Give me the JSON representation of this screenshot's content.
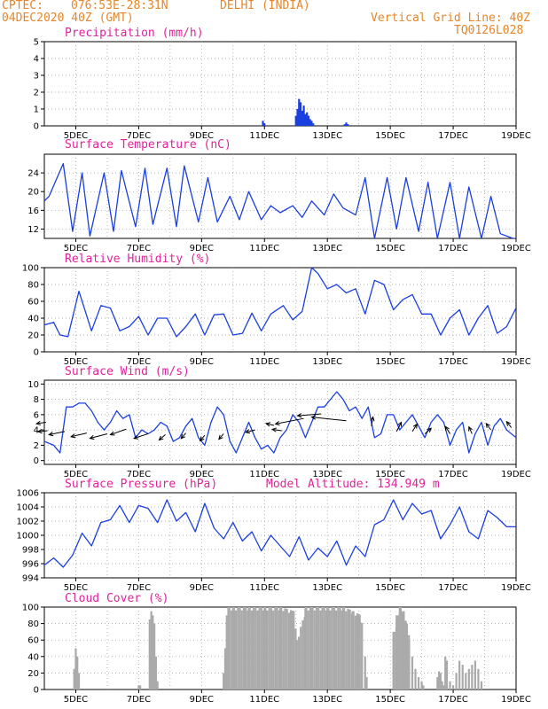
{
  "header": {
    "source": "CPTEC:",
    "coords": "076:53E-28:31N",
    "location": "DELHI (INDIA)",
    "date": "04DEC2020 40Z (GMT)",
    "grid_note": "Vertical Grid Line: 40Z",
    "run_code": "TQ0126L028"
  },
  "colors": {
    "line": "#1a3fe0",
    "bar_precip": "#1a3fe0",
    "bar_cloud": "#aaaaaa",
    "title": "#e0239a",
    "header": "#e5862a"
  },
  "x_axis": {
    "min": 4.0,
    "max": 19.0,
    "ticks": [
      5,
      7,
      9,
      11,
      13,
      15,
      17,
      19
    ],
    "tick_labels": [
      "5DEC",
      "7DEC",
      "9DEC",
      "11DEC",
      "13DEC",
      "15DEC",
      "17DEC",
      "19DEC"
    ]
  },
  "chart_data": [
    {
      "type": "bar",
      "title": "Precipitation (mm/h)",
      "ylim": [
        0,
        5
      ],
      "yticks": [
        0,
        1,
        2,
        3,
        4,
        5
      ],
      "x": [
        10.95,
        11.0,
        12.0,
        12.05,
        12.1,
        12.15,
        12.2,
        12.25,
        12.3,
        12.35,
        12.4,
        12.45,
        12.5,
        12.55,
        13.55,
        13.6,
        13.65
      ],
      "values": [
        0.3,
        0.15,
        0.6,
        1.0,
        1.6,
        1.4,
        0.9,
        1.2,
        0.7,
        0.8,
        0.6,
        0.4,
        0.3,
        0.15,
        0.1,
        0.2,
        0.1
      ]
    },
    {
      "type": "line",
      "title": "Surface Temperature (nC)",
      "ylim": [
        10,
        28
      ],
      "yticks": [
        12,
        16,
        20,
        24
      ],
      "x": [
        4.0,
        4.15,
        4.6,
        4.9,
        5.2,
        5.45,
        5.9,
        6.2,
        6.45,
        6.9,
        7.2,
        7.45,
        7.9,
        8.2,
        8.45,
        8.9,
        9.2,
        9.5,
        9.9,
        10.2,
        10.5,
        10.9,
        11.2,
        11.5,
        11.9,
        12.2,
        12.5,
        12.9,
        13.2,
        13.5,
        13.9,
        14.2,
        14.5,
        14.9,
        15.2,
        15.5,
        15.9,
        16.2,
        16.5,
        16.9,
        17.2,
        17.5,
        17.9,
        18.2,
        18.5,
        18.9,
        19.0
      ],
      "values": [
        18,
        19,
        26,
        11.5,
        24,
        10.5,
        24,
        11.5,
        24.5,
        12.5,
        25,
        13,
        25,
        12.5,
        25.5,
        13.5,
        23,
        13.5,
        19,
        14,
        20,
        14,
        17,
        15.5,
        17,
        14.5,
        18,
        15,
        19.5,
        16.5,
        15,
        23,
        10,
        23,
        12,
        23,
        11.5,
        22,
        10,
        22,
        10,
        21,
        10,
        19,
        11,
        10,
        10
      ]
    },
    {
      "type": "line",
      "title": "Relative Humidity (%)",
      "ylim": [
        0,
        100
      ],
      "yticks": [
        0,
        20,
        40,
        60,
        80,
        100
      ],
      "x": [
        4.0,
        4.3,
        4.5,
        4.75,
        5.1,
        5.5,
        5.8,
        6.1,
        6.4,
        6.7,
        7.0,
        7.3,
        7.6,
        7.9,
        8.2,
        8.5,
        8.8,
        9.1,
        9.4,
        9.7,
        10.0,
        10.3,
        10.6,
        10.9,
        11.2,
        11.6,
        11.9,
        12.2,
        12.5,
        12.7,
        13.0,
        13.3,
        13.6,
        13.9,
        14.2,
        14.5,
        14.8,
        15.1,
        15.4,
        15.7,
        16.0,
        16.3,
        16.6,
        16.9,
        17.2,
        17.5,
        17.8,
        18.1,
        18.4,
        18.7,
        19.0
      ],
      "values": [
        32,
        35,
        20,
        18,
        72,
        25,
        55,
        52,
        25,
        30,
        42,
        20,
        40,
        40,
        18,
        30,
        45,
        20,
        44,
        45,
        20,
        22,
        46,
        25,
        45,
        55,
        38,
        48,
        100,
        93,
        75,
        80,
        70,
        75,
        45,
        85,
        80,
        50,
        62,
        68,
        45,
        45,
        20,
        40,
        50,
        20,
        40,
        55,
        22,
        30,
        52
      ]
    },
    {
      "type": "line",
      "title": "Surface Wind (m/s)",
      "ylim": [
        -0.5,
        10.5
      ],
      "yticks": [
        0,
        2,
        4,
        6,
        8,
        10
      ],
      "x": [
        4.0,
        4.3,
        4.5,
        4.7,
        4.9,
        5.1,
        5.3,
        5.5,
        5.7,
        5.9,
        6.1,
        6.3,
        6.5,
        6.7,
        6.9,
        7.1,
        7.3,
        7.5,
        7.7,
        7.9,
        8.1,
        8.3,
        8.5,
        8.7,
        8.9,
        9.1,
        9.3,
        9.5,
        9.7,
        9.9,
        10.1,
        10.3,
        10.5,
        10.7,
        10.9,
        11.1,
        11.3,
        11.5,
        11.7,
        11.9,
        12.1,
        12.3,
        12.5,
        12.7,
        12.9,
        13.1,
        13.3,
        13.5,
        13.7,
        13.9,
        14.1,
        14.3,
        14.5,
        14.7,
        14.9,
        15.1,
        15.3,
        15.5,
        15.7,
        15.9,
        16.1,
        16.3,
        16.5,
        16.7,
        16.9,
        17.1,
        17.3,
        17.5,
        17.7,
        17.9,
        18.1,
        18.3,
        18.5,
        18.7,
        19.0
      ],
      "values": [
        2.5,
        2,
        1,
        7,
        7,
        7.5,
        7.5,
        6.5,
        5,
        4,
        5,
        6.5,
        5.5,
        6,
        3,
        4,
        3.5,
        4,
        5,
        4.5,
        2.5,
        3,
        4.5,
        5.5,
        3,
        2,
        5,
        7,
        6,
        2.5,
        1,
        3,
        5,
        3,
        1.5,
        2,
        1,
        3,
        4,
        6,
        5,
        3,
        5,
        7,
        7,
        8,
        9,
        8,
        6.5,
        7,
        5.5,
        7,
        3,
        3.5,
        6,
        6,
        4,
        5,
        6,
        4.5,
        3,
        5,
        6,
        5,
        2,
        4,
        5,
        1,
        3.5,
        5,
        2,
        4.5,
        5.5,
        4,
        3
      ],
      "arrows": {
        "x": [
          4.05,
          4.1,
          4.65,
          5.35,
          6.0,
          6.6,
          7.3,
          7.85,
          8.5,
          9.1,
          9.7,
          10.7,
          11.3,
          11.55,
          12.25,
          12.8,
          13.6,
          14.4,
          15.2,
          15.7,
          16.1,
          16.9,
          17.6,
          18.2,
          18.85
        ],
        "y": [
          5,
          3.9,
          3.8,
          3.6,
          3.5,
          4.1,
          3.5,
          3.4,
          3.6,
          3.3,
          3.5,
          4.0,
          4.6,
          3.9,
          5.5,
          6.1,
          5.2,
          4.5,
          3.8,
          3.8,
          3.5,
          3.5,
          3.5,
          4.0,
          4.3
        ],
        "dx": [
          0.3,
          0.3,
          0.5,
          0.5,
          0.55,
          0.5,
          0.45,
          0.2,
          0.15,
          0.15,
          0.15,
          0.3,
          0.25,
          0.3,
          0.9,
          0.75,
          1.1,
          -0.05,
          -0.15,
          -0.15,
          -0.2,
          0.15,
          0.1,
          0.15,
          0.15
        ],
        "dy": [
          0.3,
          0.2,
          0.7,
          0.8,
          1.0,
          1.2,
          1.0,
          1.2,
          1.2,
          1.2,
          1.2,
          0.5,
          -0.4,
          -0.3,
          1.2,
          0.4,
          -0.8,
          -2.0,
          -2.0,
          -1.6,
          -1.2,
          -1.6,
          -1.5,
          -1.4,
          -1.3
        ]
      }
    },
    {
      "type": "line",
      "title": "Surface Pressure (hPa)",
      "annotation": "Model Altitude: 134.949 m",
      "ylim": [
        994,
        1006
      ],
      "yticks": [
        994,
        996,
        998,
        1000,
        1002,
        1004,
        1006
      ],
      "x": [
        4.0,
        4.3,
        4.6,
        4.9,
        5.2,
        5.5,
        5.8,
        6.1,
        6.4,
        6.7,
        7.0,
        7.3,
        7.6,
        7.9,
        8.2,
        8.5,
        8.8,
        9.1,
        9.4,
        9.7,
        10.0,
        10.3,
        10.6,
        10.9,
        11.2,
        11.5,
        11.8,
        12.1,
        12.4,
        12.7,
        13.0,
        13.3,
        13.6,
        13.9,
        14.2,
        14.5,
        14.8,
        15.1,
        15.4,
        15.7,
        16.0,
        16.3,
        16.6,
        16.9,
        17.2,
        17.5,
        17.8,
        18.1,
        18.4,
        18.7,
        19.0
      ],
      "values": [
        995.8,
        996.8,
        995.5,
        997.2,
        1000.3,
        998.5,
        1001.8,
        1002.2,
        1004.2,
        1001.8,
        1004.2,
        1003.8,
        1001.8,
        1005,
        1002,
        1003.2,
        1000.5,
        1004.5,
        1001,
        999.5,
        1001.8,
        999.2,
        1000.5,
        997.8,
        1000,
        998.5,
        997,
        999.8,
        996.5,
        998.2,
        997,
        999.2,
        995.8,
        998.5,
        997,
        1001.5,
        1002.2,
        1005,
        1002.2,
        1004.5,
        1003,
        1003.5,
        999.5,
        1001.5,
        1004,
        1000.5,
        999.5,
        1003.5,
        1002.5,
        1001.2,
        1001.2
      ]
    },
    {
      "type": "bar",
      "title": "Cloud Cover (%)",
      "ylim": [
        0,
        100
      ],
      "yticks": [
        0,
        20,
        40,
        60,
        80,
        100
      ],
      "x": [
        4.95,
        5.0,
        5.05,
        5.1,
        7.0,
        7.05,
        7.35,
        7.4,
        7.45,
        7.5,
        7.55,
        7.6,
        9.7,
        9.75,
        9.8,
        9.85,
        10.0,
        10.5,
        11.0,
        11.5,
        11.9,
        12.0,
        12.3,
        12.5,
        13.0,
        13.5,
        13.8,
        14.0,
        14.1,
        14.2,
        14.25,
        15.1,
        15.2,
        15.3,
        15.4,
        15.5,
        15.6,
        15.7,
        15.8,
        15.9,
        16.0,
        16.05,
        16.5,
        16.55,
        16.6,
        16.65,
        16.7,
        16.75,
        16.8,
        16.9,
        17.0,
        17.1,
        17.2,
        17.3,
        17.4,
        17.5,
        17.6,
        17.7,
        17.8,
        17.9
      ],
      "values": [
        25,
        50,
        40,
        20,
        5,
        5,
        85,
        95,
        90,
        80,
        40,
        10,
        20,
        50,
        90,
        100,
        100,
        100,
        100,
        100,
        95,
        60,
        100,
        100,
        100,
        100,
        95,
        90,
        80,
        40,
        15,
        70,
        90,
        100,
        95,
        80,
        60,
        40,
        25,
        15,
        10,
        5,
        15,
        22,
        20,
        10,
        5,
        40,
        35,
        10,
        5,
        20,
        35,
        30,
        20,
        25,
        30,
        35,
        25,
        10
      ]
    }
  ]
}
